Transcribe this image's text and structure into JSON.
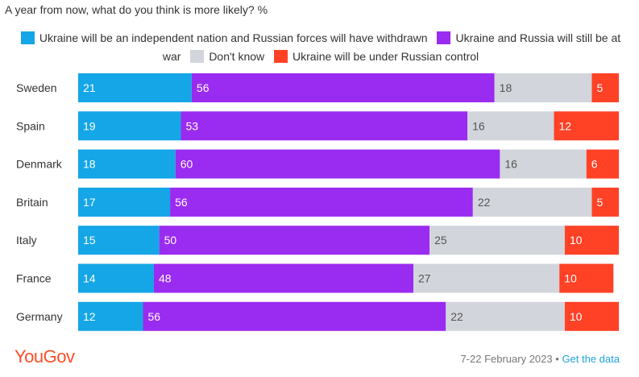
{
  "chart_data": {
    "type": "bar",
    "stacked": true,
    "orientation": "horizontal",
    "title": "A year from now, what do you think is more likely? %",
    "categories": [
      "Sweden",
      "Spain",
      "Denmark",
      "Britain",
      "Italy",
      "France",
      "Germany"
    ],
    "series": [
      {
        "name": "Ukraine will be an independent nation and Russian forces will have withdrawn",
        "color": "#14a6e6",
        "label_color": "#ffffff",
        "values": [
          21,
          19,
          18,
          17,
          15,
          14,
          12
        ]
      },
      {
        "name": "Ukraine and Russia will still be at war",
        "color": "#9a2bf0",
        "label_color": "#ffffff",
        "values": [
          56,
          53,
          60,
          56,
          50,
          48,
          56
        ]
      },
      {
        "name": "Don't know",
        "color": "#d3d5dc",
        "label_color": "#555555",
        "values": [
          18,
          16,
          16,
          22,
          25,
          27,
          22
        ]
      },
      {
        "name": "Ukraine will be under Russian control",
        "color": "#ff4126",
        "label_color": "#ffffff",
        "values": [
          5,
          12,
          6,
          5,
          10,
          10,
          10
        ]
      }
    ],
    "xlim": [
      0,
      100
    ]
  },
  "legend": {
    "items": [
      "Ukraine will be an independent nation and Russian forces will have withdrawn",
      "Ukraine and Russia will still be at war",
      "Don't know",
      "Ukraine will be under Russian control"
    ]
  },
  "footer": {
    "brand": "YouGov",
    "date": "7-22 February 2023",
    "separator": "•",
    "link": "Get the data"
  }
}
